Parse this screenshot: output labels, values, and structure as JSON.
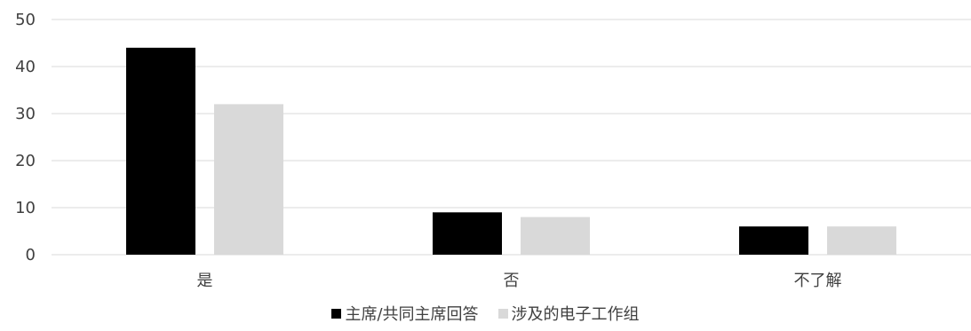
{
  "chart_data": {
    "type": "bar",
    "title": "",
    "xlabel": "",
    "ylabel": "",
    "categories": [
      "是",
      "否",
      "不了解"
    ],
    "series": [
      {
        "name": "主席/共同主席回答",
        "values": [
          44,
          9,
          6
        ],
        "color": "#000000"
      },
      {
        "name": "涉及的电子工作组",
        "values": [
          32,
          8,
          6
        ],
        "color": "#d9d9d9"
      }
    ],
    "ylim": [
      0,
      50
    ],
    "yticks": [
      0,
      10,
      20,
      30,
      40,
      50
    ],
    "grid": true,
    "legend_position": "bottom-center"
  }
}
